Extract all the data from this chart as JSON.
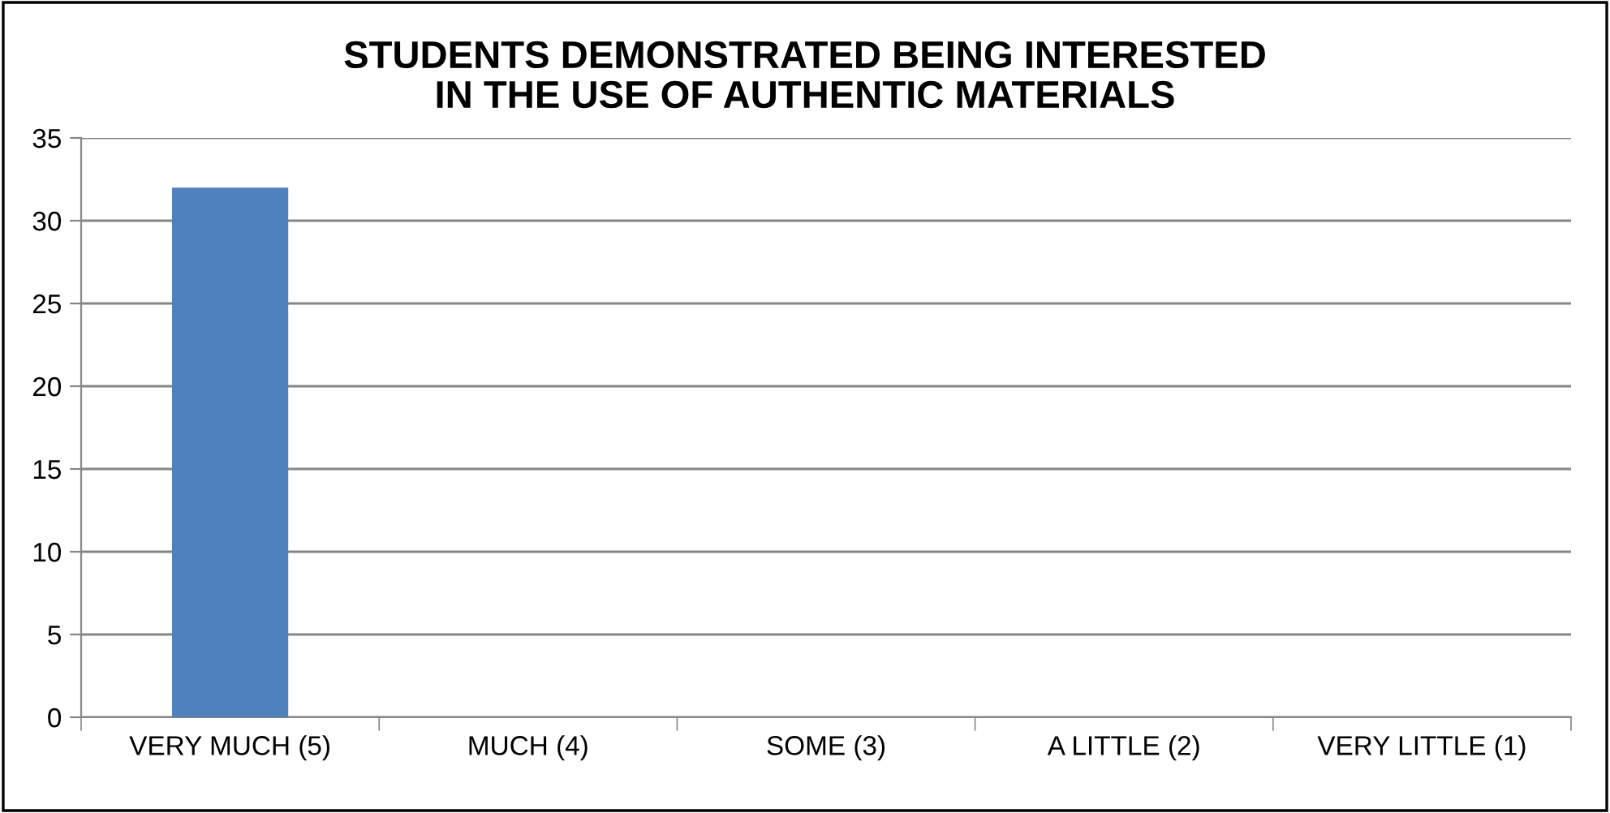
{
  "chart_data": {
    "type": "bar",
    "title": "STUDENTS DEMONSTRATED BEING INTERESTED\nIN THE USE OF AUTHENTIC MATERIALS",
    "categories": [
      "VERY MUCH (5)",
      "MUCH (4)",
      "SOME (3)",
      "A LITTLE (2)",
      "VERY LITTLE (1)"
    ],
    "values": [
      32,
      0,
      0,
      0,
      0
    ],
    "color": "#4f81bd",
    "ylim": [
      0,
      35
    ],
    "yticks": [
      0,
      5,
      10,
      15,
      20,
      25,
      30,
      35
    ],
    "grid": "y",
    "legend": false
  }
}
